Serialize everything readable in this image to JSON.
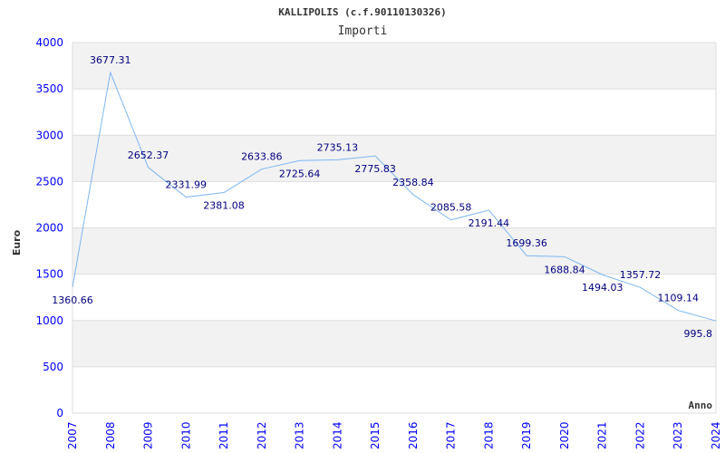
{
  "chart_data": {
    "type": "line",
    "title": "KALLIPOLIS (c.f.90110130326)",
    "subtitle": "Importi",
    "xlabel": "Anno",
    "ylabel": "Euro",
    "ylim": [
      0,
      4000
    ],
    "yticks": [
      0,
      500,
      1000,
      1500,
      2000,
      2500,
      3000,
      3500,
      4000
    ],
    "grid": true,
    "categories": [
      "2007",
      "2008",
      "2009",
      "2010",
      "2011",
      "2012",
      "2013",
      "2014",
      "2015",
      "2016",
      "2017",
      "2018",
      "2019",
      "2020",
      "2021",
      "2022",
      "2023",
      "2024"
    ],
    "series": [
      {
        "name": "Importi",
        "values": [
          1360.66,
          3677.31,
          2652.37,
          2331.99,
          2381.08,
          2633.86,
          2725.64,
          2735.13,
          2775.83,
          2358.84,
          2085.58,
          2191.44,
          1699.36,
          1688.84,
          1494.03,
          1357.72,
          1109.14,
          995.8
        ],
        "labels": [
          "1360.66",
          "3677.31",
          "2652.37",
          "2331.99",
          "2381.08",
          "2633.86",
          "2725.64",
          "2735.13",
          "2775.83",
          "2358.84",
          "2085.58",
          "2191.44",
          "1699.36",
          "1688.84",
          "1494.03",
          "1357.72",
          "1109.14",
          "995.8"
        ]
      }
    ],
    "colors": {
      "line": "#7eb6f0",
      "tick": "#0000ff",
      "label": "#000080",
      "band": "#f2f2f2",
      "grid": "#dddddd",
      "title": "#333333"
    }
  }
}
